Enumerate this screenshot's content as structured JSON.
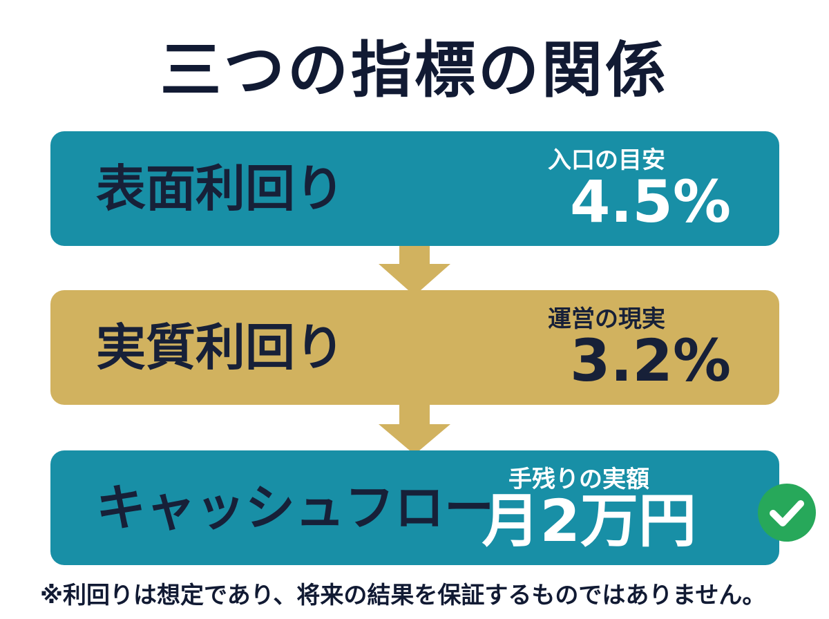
{
  "title": "三つの指標の関係",
  "boxes": [
    {
      "label": "表面利回り",
      "sub": "入口の目安",
      "value": "4.5%"
    },
    {
      "label": "実質利回り",
      "sub": "運営の現実",
      "value": "3.2%"
    },
    {
      "label": "キャッシュフロー",
      "sub": "手残りの実額",
      "value": "月2万円"
    }
  ],
  "footnote": "※利回りは想定であり、将来の結果を保証するものではありません。",
  "colors": {
    "teal": "#188fa6",
    "gold": "#d1b25f",
    "navy": "#172038",
    "check_green": "#27a85a"
  },
  "icons": {
    "arrows": "arrow-down-icon",
    "check": "check-circle-icon"
  }
}
